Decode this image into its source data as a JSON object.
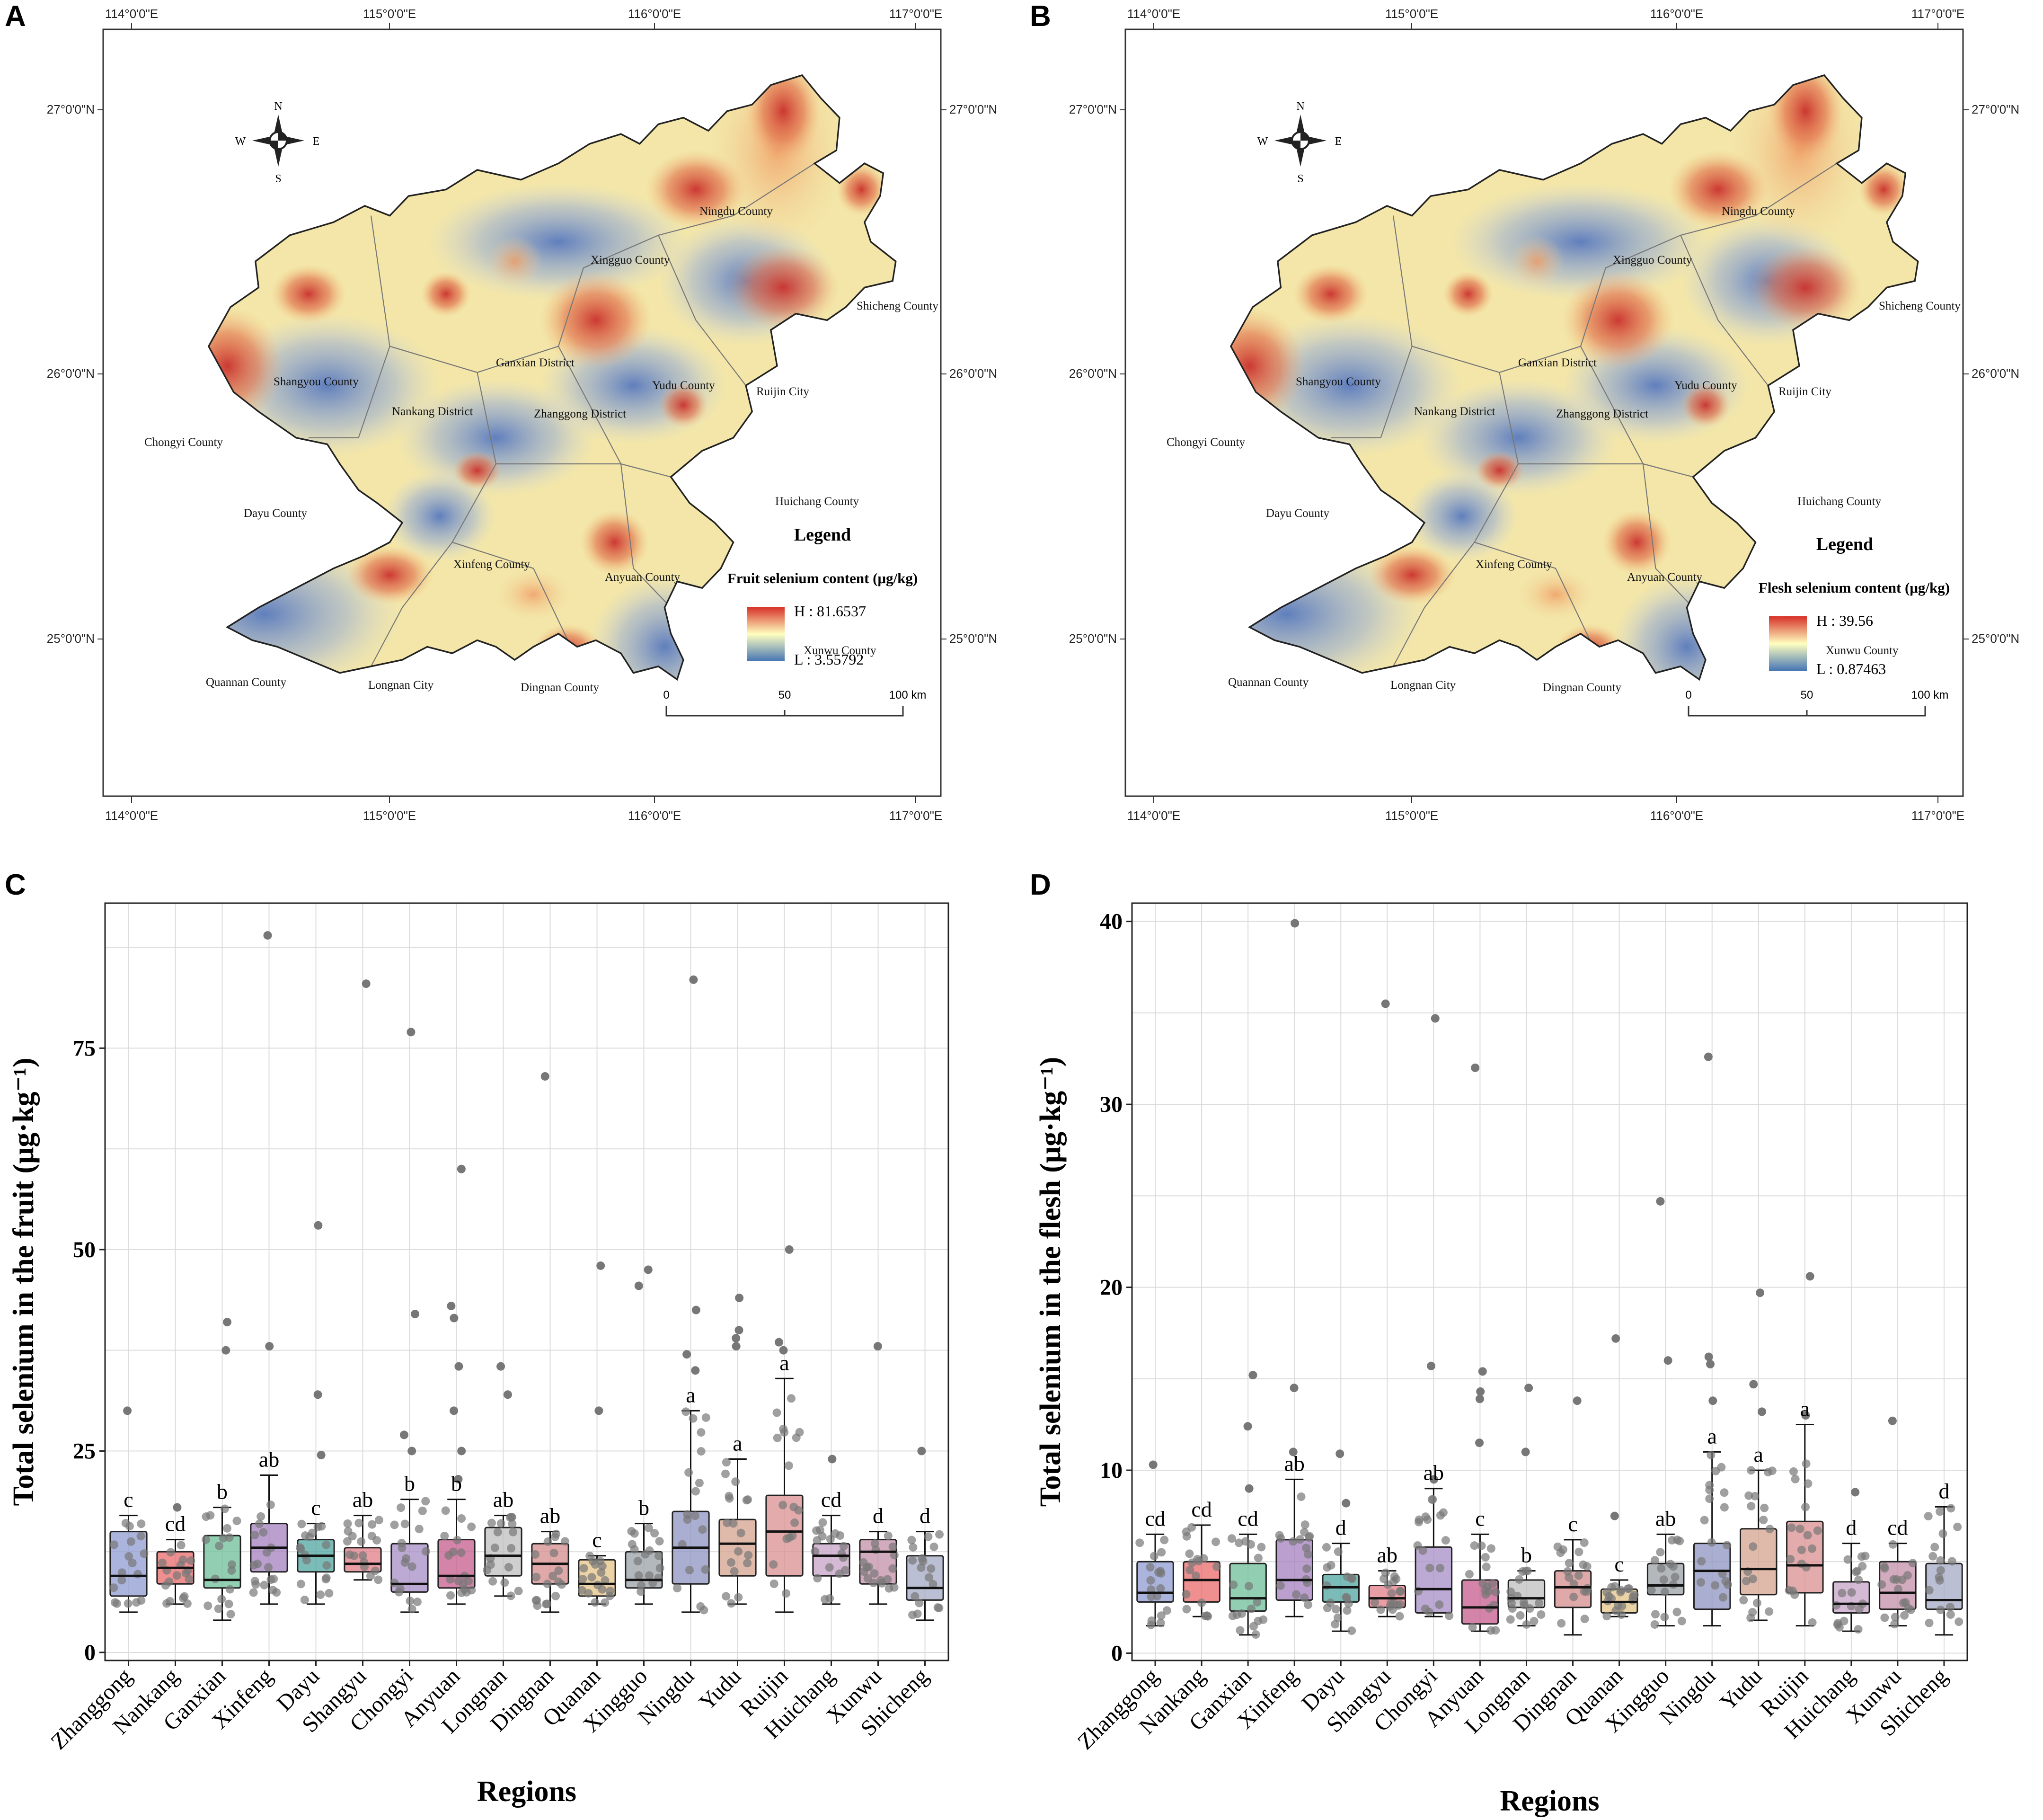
{
  "panels": {
    "a": "A",
    "b": "B",
    "c": "C",
    "d": "D"
  },
  "maps": {
    "top_coords": [
      "114°0'0\"E",
      "115°0'0\"E",
      "116°0'0\"E",
      "117°0'0\"E"
    ],
    "bottom_coords": [
      "114°0'0\"E",
      "115°0'0\"E",
      "116°0'0\"E",
      "117°0'0\"E"
    ],
    "left_coords": [
      "27°0'0\"N",
      "26°0'0\"N",
      "25°0'0\"N"
    ],
    "right_coords": [
      "27°0'0\"N",
      "26°0'0\"N",
      "25°0'0\"N"
    ],
    "compass": {
      "n": "N",
      "s": "S",
      "e": "E",
      "w": "W"
    },
    "scale_labels": [
      "0",
      "50",
      "100 km"
    ],
    "counties": [
      "Ningdu County",
      "Xingguo County",
      "Shicheng County",
      "Ganxian District",
      "Yudu County",
      "Ruijin City",
      "Shangyou County",
      "Nankang District",
      "Zhanggong District",
      "Chongyi County",
      "Huichang County",
      "Dayu County",
      "Xinfeng County",
      "Anyuan County",
      "Xunwu County",
      "Quannan County",
      "Longnan City",
      "Dingnan County"
    ],
    "legend_title": "Legend",
    "A": {
      "subtitle": "Fruit selenium content (μg/kg)",
      "high": "H : 81.6537",
      "low": "L : 3.55792"
    },
    "B": {
      "subtitle": "Flesh selenium content (μg/kg)",
      "high": "H : 39.56",
      "low": "L : 0.87463"
    },
    "colors": {
      "high": "#d73027",
      "mid": "#ffffbf",
      "low": "#4575b4"
    }
  },
  "chart_data": [
    {
      "type": "box",
      "panel": "C",
      "title": "",
      "xlabel": "Regions",
      "ylabel": "Total selenium in the fruit (μg·kg⁻¹)",
      "ylim": [
        -1,
        93
      ],
      "yticks": [
        0,
        25,
        50,
        75
      ],
      "categories": [
        "Zhanggong",
        "Nankang",
        "Ganxian",
        "Xinfeng",
        "Dayu",
        "Shangyu",
        "Chongyi",
        "Anyuan",
        "Longnan",
        "Dingnan",
        "Quanan",
        "Xingguo",
        "Ningdu",
        "Yudu",
        "Ruijin",
        "Huichang",
        "Xunwu",
        "Shicheng"
      ],
      "colors": [
        "#8e9bd0",
        "#e9696b",
        "#6dbf98",
        "#a37fbf",
        "#4fa6a0",
        "#e17c86",
        "#a78dc5",
        "#c65b8b",
        "#bfbfbf",
        "#d58c8c",
        "#e6c487",
        "#9aa0a6",
        "#8d93c0",
        "#d4a38e",
        "#d98f8f",
        "#c7a3c7",
        "#c48fa8",
        "#a4a9c4"
      ],
      "stats": [
        {
          "min": 5,
          "q1": 7,
          "median": 9.5,
          "q3": 15,
          "max": 17
        },
        {
          "min": 6,
          "q1": 8.5,
          "median": 10.5,
          "q3": 12.5,
          "max": 14
        },
        {
          "min": 4,
          "q1": 8,
          "median": 9,
          "q3": 14.5,
          "max": 18
        },
        {
          "min": 6,
          "q1": 10,
          "median": 13,
          "q3": 16,
          "max": 22
        },
        {
          "min": 6,
          "q1": 10,
          "median": 12,
          "q3": 14,
          "max": 16
        },
        {
          "min": 9,
          "q1": 10,
          "median": 11,
          "q3": 13,
          "max": 17
        },
        {
          "min": 5,
          "q1": 7.5,
          "median": 8.5,
          "q3": 13.5,
          "max": 19
        },
        {
          "min": 6,
          "q1": 8,
          "median": 9.5,
          "q3": 14,
          "max": 19
        },
        {
          "min": 7,
          "q1": 9.5,
          "median": 12,
          "q3": 15.5,
          "max": 17
        },
        {
          "min": 5,
          "q1": 8.5,
          "median": 11,
          "q3": 13.5,
          "max": 15
        },
        {
          "min": 6,
          "q1": 7,
          "median": 8.5,
          "q3": 11.5,
          "max": 12
        },
        {
          "min": 6,
          "q1": 8,
          "median": 9,
          "q3": 12.5,
          "max": 16
        },
        {
          "min": 5,
          "q1": 8.5,
          "median": 13,
          "q3": 17.5,
          "max": 30
        },
        {
          "min": 6,
          "q1": 9.5,
          "median": 13.5,
          "q3": 16.5,
          "max": 24
        },
        {
          "min": 5,
          "q1": 9.5,
          "median": 15,
          "q3": 19.5,
          "max": 34
        },
        {
          "min": 6,
          "q1": 9.5,
          "median": 12,
          "q3": 13.5,
          "max": 17
        },
        {
          "min": 6,
          "q1": 8.5,
          "median": 12.5,
          "q3": 14,
          "max": 15
        },
        {
          "min": 4,
          "q1": 6.5,
          "median": 8,
          "q3": 12,
          "max": 15
        }
      ],
      "outliers": [
        [
          30
        ],
        [
          18
        ],
        [
          37.5,
          41
        ],
        [
          38,
          89
        ],
        [
          24.5,
          32,
          53
        ],
        [
          83
        ],
        [
          25,
          27,
          42,
          77
        ],
        [
          21.5,
          25,
          30,
          35.5,
          41.5,
          43,
          60
        ],
        [
          32,
          35.5
        ],
        [
          71.5
        ],
        [
          30,
          48
        ],
        [
          45.5,
          47.5
        ],
        [
          35,
          37,
          42.5,
          83.5
        ],
        [
          38,
          39,
          40,
          44
        ],
        [
          37.5,
          38.5,
          50
        ],
        [
          24
        ],
        [
          38
        ],
        [
          25
        ]
      ],
      "letters": [
        "c",
        "cd",
        "b",
        "ab",
        "c",
        "ab",
        "b",
        "b",
        "ab",
        "ab",
        "c",
        "b",
        "a",
        "a",
        "a",
        "cd",
        "d",
        "d"
      ]
    },
    {
      "type": "box",
      "panel": "D",
      "title": "",
      "xlabel": "Regions",
      "ylabel": "Total selenium in the flesh (μg·kg⁻¹)",
      "ylim": [
        -0.4,
        41
      ],
      "yticks": [
        0,
        10,
        20,
        30,
        40
      ],
      "categories": [
        "Zhanggong",
        "Nankang",
        "Ganxian",
        "Xinfeng",
        "Dayu",
        "Shangyu",
        "Chongyi",
        "Anyuan",
        "Longnan",
        "Dingnan",
        "Quanan",
        "Xingguo",
        "Ningdu",
        "Yudu",
        "Ruijin",
        "Huichang",
        "Xunwu",
        "Shicheng"
      ],
      "colors": [
        "#8e9bd0",
        "#e9696b",
        "#6dbf98",
        "#a37fbf",
        "#4fa6a0",
        "#e17c86",
        "#a78dc5",
        "#c65b8b",
        "#bfbfbf",
        "#d58c8c",
        "#e6c487",
        "#9aa0a6",
        "#8d93c0",
        "#d4a38e",
        "#d98f8f",
        "#c7a3c7",
        "#c48fa8",
        "#a4a9c4"
      ],
      "stats": [
        {
          "min": 1.5,
          "q1": 2.8,
          "median": 3.3,
          "q3": 5,
          "max": 6.5
        },
        {
          "min": 2,
          "q1": 2.8,
          "median": 4,
          "q3": 5,
          "max": 7
        },
        {
          "min": 1,
          "q1": 2.3,
          "median": 3,
          "q3": 4.9,
          "max": 6.5
        },
        {
          "min": 2,
          "q1": 2.9,
          "median": 4,
          "q3": 6.2,
          "max": 9.5
        },
        {
          "min": 1.2,
          "q1": 2.8,
          "median": 3.6,
          "q3": 4.3,
          "max": 6
        },
        {
          "min": 2,
          "q1": 2.5,
          "median": 3,
          "q3": 3.7,
          "max": 4.5
        },
        {
          "min": 2,
          "q1": 2.2,
          "median": 3.5,
          "q3": 5.8,
          "max": 9
        },
        {
          "min": 1.2,
          "q1": 1.6,
          "median": 2.5,
          "q3": 4,
          "max": 6.5
        },
        {
          "min": 1.5,
          "q1": 2.5,
          "median": 3,
          "q3": 4,
          "max": 4.5
        },
        {
          "min": 1,
          "q1": 2.5,
          "median": 3.6,
          "q3": 4.5,
          "max": 6.2
        },
        {
          "min": 2,
          "q1": 2.2,
          "median": 2.8,
          "q3": 3.5,
          "max": 4
        },
        {
          "min": 1.5,
          "q1": 3.2,
          "median": 3.7,
          "q3": 4.9,
          "max": 6.5
        },
        {
          "min": 1.5,
          "q1": 2.4,
          "median": 4.5,
          "q3": 6,
          "max": 11
        },
        {
          "min": 1.8,
          "q1": 3.2,
          "median": 4.6,
          "q3": 6.8,
          "max": 10
        },
        {
          "min": 1.5,
          "q1": 3.3,
          "median": 4.8,
          "q3": 7.2,
          "max": 12.5
        },
        {
          "min": 1.2,
          "q1": 2.2,
          "median": 2.7,
          "q3": 3.9,
          "max": 6
        },
        {
          "min": 1.5,
          "q1": 2.4,
          "median": 3.3,
          "q3": 5,
          "max": 6
        },
        {
          "min": 1,
          "q1": 2.4,
          "median": 2.9,
          "q3": 4.9,
          "max": 8
        }
      ],
      "outliers": [
        [
          10.3
        ],
        [],
        [
          9,
          12.4,
          15.2
        ],
        [
          11,
          14.5,
          39.9
        ],
        [
          8.2,
          10.9
        ],
        [
          35.5
        ],
        [
          9.5,
          15.7,
          34.7
        ],
        [
          11.5,
          13.9,
          14.3,
          15.4,
          32
        ],
        [
          11,
          14.5
        ],
        [
          13.8
        ],
        [
          7.5,
          17.2
        ],
        [
          16,
          24.7
        ],
        [
          13.8,
          15.8,
          16.2,
          32.6
        ],
        [
          13.2,
          14.7,
          19.7
        ],
        [
          13,
          20.6
        ],
        [
          8.8
        ],
        [
          12.7
        ],
        []
      ],
      "letters": [
        "cd",
        "cd",
        "cd",
        "ab",
        "d",
        "ab",
        "ab",
        "c",
        "b",
        "c",
        "c",
        "ab",
        "a",
        "a",
        "a",
        "d",
        "cd",
        "d"
      ]
    }
  ]
}
